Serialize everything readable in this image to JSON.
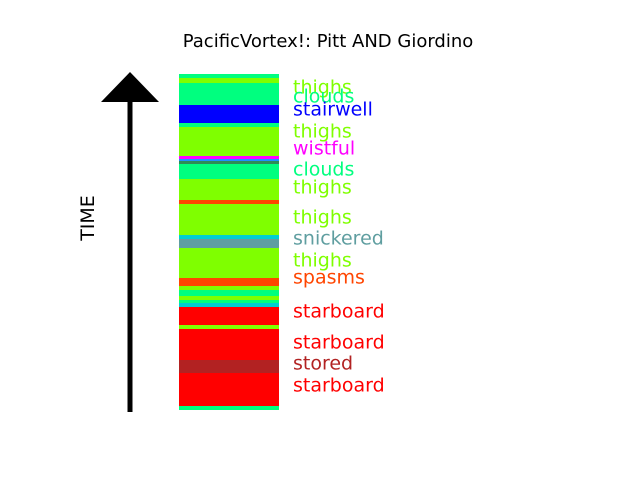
{
  "chart_data": {
    "type": "stacked-timeline-strip",
    "title": "PacificVortex!: Pitt AND Giordino",
    "axis_label": "TIME",
    "stripes": [
      {
        "color": "#00ff7f"
      },
      {
        "color": "#7fff00"
      },
      {
        "color": "#00ff7f"
      },
      {
        "color": "#7fff00"
      },
      {
        "color": "#00ff7f"
      },
      {
        "color": "#0000ff"
      },
      {
        "color": "#00ff7f"
      },
      {
        "color": "#7fff00"
      },
      {
        "color": "#7fff00"
      },
      {
        "color": "#ff00ff"
      },
      {
        "color": "#1e90ff"
      },
      {
        "color": "#2e8b57"
      },
      {
        "color": "#00ff7f"
      },
      {
        "color": "#00ff7f"
      },
      {
        "color": "#7fff00"
      },
      {
        "color": "#7fff00"
      },
      {
        "color": "#ff4500"
      },
      {
        "color": "#7fff00"
      },
      {
        "color": "#7fff00"
      },
      {
        "color": "#00ced1"
      },
      {
        "color": "#5f9ea0"
      },
      {
        "color": "#7fff00"
      },
      {
        "color": "#7fff00"
      },
      {
        "color": "#ff4500"
      },
      {
        "color": "#00ff7f"
      },
      {
        "color": "#7fff00"
      },
      {
        "color": "#00ff7f"
      },
      {
        "color": "#7fff00"
      },
      {
        "color": "#00ced1"
      },
      {
        "color": "#ff0000"
      },
      {
        "color": "#7fff00"
      },
      {
        "color": "#ff0000"
      },
      {
        "color": "#ff0000"
      },
      {
        "color": "#b22222"
      },
      {
        "color": "#ff0000"
      },
      {
        "color": "#ff0000"
      },
      {
        "color": "#00ff7f"
      }
    ],
    "labels": [
      {
        "text": "thighs",
        "color": "#7fff00"
      },
      {
        "text": "clouds",
        "color": "#00ff7f"
      },
      {
        "text": "stairwell",
        "color": "#0000ff"
      },
      {
        "text": "thighs",
        "color": "#7fff00"
      },
      {
        "text": "wistful",
        "color": "#ff00ff"
      },
      {
        "text": "clouds",
        "color": "#00ff7f"
      },
      {
        "text": "thighs",
        "color": "#7fff00"
      },
      {
        "text": "thighs",
        "color": "#7fff00"
      },
      {
        "text": "snickered",
        "color": "#5f9ea0"
      },
      {
        "text": "thighs",
        "color": "#7fff00"
      },
      {
        "text": "spasms",
        "color": "#ff4500"
      },
      {
        "text": "starboard",
        "color": "#ff0000"
      },
      {
        "text": "starboard",
        "color": "#ff0000"
      },
      {
        "text": "stored",
        "color": "#b22222"
      },
      {
        "text": "starboard",
        "color": "#ff0000"
      }
    ]
  }
}
